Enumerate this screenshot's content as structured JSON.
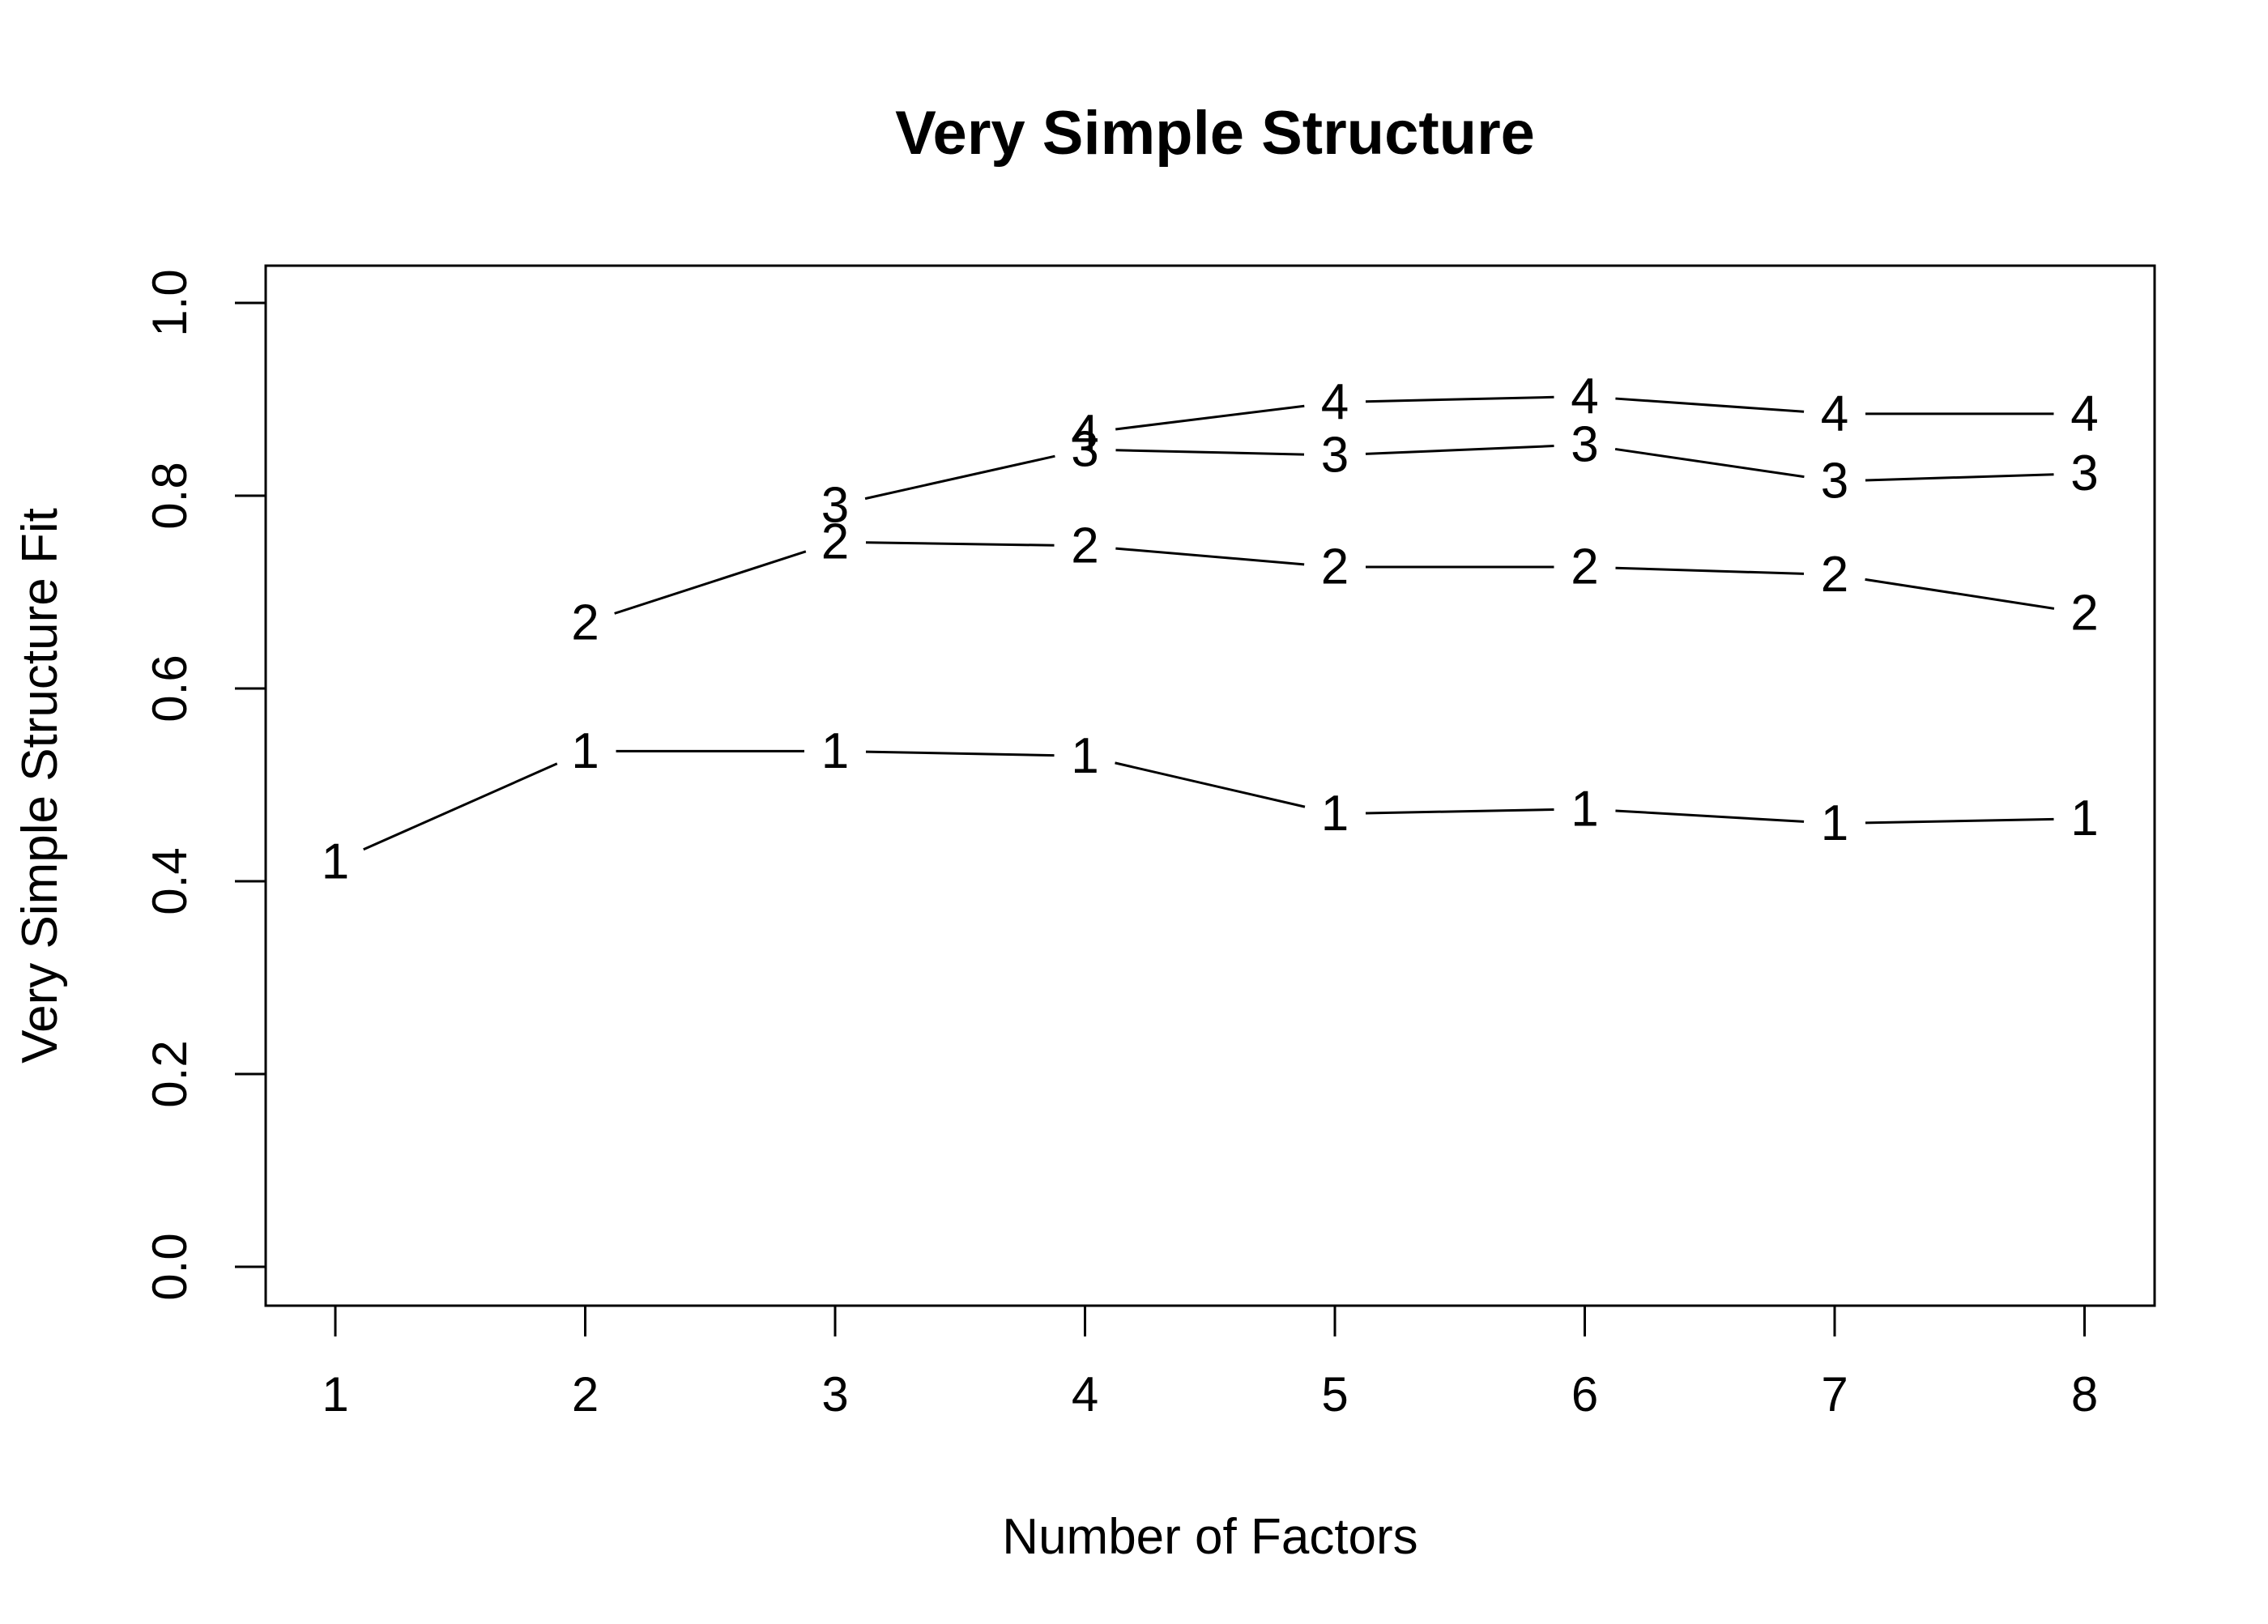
{
  "chart_data": {
    "type": "line",
    "title": "Very Simple Structure",
    "xlabel": "Number of Factors",
    "ylabel": "Very Simple Structure Fit",
    "x": [
      1,
      2,
      3,
      4,
      5,
      6,
      7,
      8
    ],
    "xticks": [
      "1",
      "2",
      "3",
      "4",
      "5",
      "6",
      "7",
      "8"
    ],
    "ylim": [
      0,
      1
    ],
    "yticks": [
      "0.0",
      "0.2",
      "0.4",
      "0.6",
      "0.8",
      "1.0"
    ],
    "series": [
      {
        "name": "1",
        "x": [
          1,
          2,
          3,
          4,
          5,
          6,
          7,
          8
        ],
        "values": [
          0.42,
          0.535,
          0.535,
          0.53,
          0.47,
          0.475,
          0.46,
          0.465
        ]
      },
      {
        "name": "2",
        "x": [
          2,
          3,
          4,
          5,
          6,
          7,
          8
        ],
        "values": [
          0.668,
          0.752,
          0.748,
          0.726,
          0.726,
          0.718,
          0.678
        ]
      },
      {
        "name": "3",
        "x": [
          3,
          4,
          5,
          6,
          7,
          8
        ],
        "values": [
          0.79,
          0.848,
          0.842,
          0.853,
          0.815,
          0.823
        ]
      },
      {
        "name": "4",
        "x": [
          4,
          5,
          6,
          7,
          8
        ],
        "values": [
          0.865,
          0.897,
          0.903,
          0.885,
          0.885
        ]
      }
    ],
    "grid": false,
    "legend": "none"
  },
  "colors": {
    "line": "#000000",
    "background": "#ffffff"
  }
}
